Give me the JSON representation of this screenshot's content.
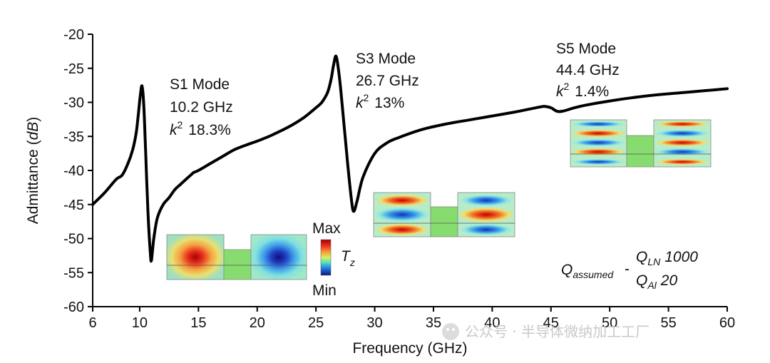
{
  "chart_data": {
    "type": "line",
    "xlabel": "Frequency (GHz)",
    "ylabel_main": "Admittance (",
    "ylabel_unit": "dB",
    "ylabel_close": ")",
    "xlim": [
      6,
      60
    ],
    "ylim": [
      -60,
      -20
    ],
    "xticks": [
      6,
      10,
      15,
      20,
      25,
      30,
      35,
      40,
      45,
      50,
      55,
      60
    ],
    "yticks": [
      -20,
      -25,
      -30,
      -35,
      -40,
      -45,
      -50,
      -55,
      -60
    ],
    "series": [
      {
        "x": [
          6,
          7,
          8,
          8.5,
          9,
          9.4,
          9.7,
          9.9,
          10.05,
          10.2,
          10.35,
          10.5,
          10.7,
          10.9,
          11.0,
          11.2,
          11.5,
          12,
          12.5,
          13,
          13.5,
          14,
          14.4,
          14.6,
          15,
          16,
          17,
          18,
          19,
          20,
          21,
          22,
          23,
          24,
          25,
          25.5,
          26,
          26.3,
          26.5,
          26.7,
          26.9,
          27.1,
          27.4,
          27.7,
          28.0,
          28.2,
          28.5,
          29,
          30,
          31,
          32,
          34,
          36,
          38,
          40,
          42,
          44,
          44.5,
          45,
          45.5,
          46,
          47,
          48,
          50,
          52,
          54,
          56,
          58,
          60
        ],
        "y": [
          -45,
          -43.3,
          -41.3,
          -40.7,
          -39.0,
          -37.0,
          -34.5,
          -31.5,
          -29.0,
          -27.6,
          -30.5,
          -37.0,
          -46.0,
          -52.0,
          -53.2,
          -50.0,
          -47.0,
          -45.0,
          -44.0,
          -42.8,
          -42.0,
          -41.2,
          -40.6,
          -40.3,
          -40.0,
          -39.0,
          -38.0,
          -37.0,
          -36.3,
          -35.7,
          -35.0,
          -34.2,
          -33.3,
          -32.2,
          -30.8,
          -30.0,
          -28.5,
          -26.5,
          -24.5,
          -23.2,
          -25.0,
          -28.0,
          -33.5,
          -39.0,
          -44.0,
          -46.0,
          -44.5,
          -41.0,
          -37.5,
          -36.0,
          -35.2,
          -34.0,
          -33.2,
          -32.6,
          -32.0,
          -31.4,
          -30.7,
          -30.6,
          -30.8,
          -31.3,
          -31.3,
          -30.8,
          -30.4,
          -29.8,
          -29.3,
          -28.9,
          -28.6,
          -28.3,
          -28.0
        ]
      }
    ]
  },
  "annotations": {
    "s1": {
      "title": "S1 Mode",
      "freq": "10.2 GHz",
      "k": "k",
      "k_exp": "2",
      "k_val": "18.3%"
    },
    "s3": {
      "title": "S3 Mode",
      "freq": "26.7 GHz",
      "k": "k",
      "k_exp": "2",
      "k_val": "13%"
    },
    "s5": {
      "title": "S5 Mode",
      "freq": "44.4 GHz",
      "k": "k",
      "k_exp": "2",
      "k_val": "1.4%"
    }
  },
  "colorbar": {
    "max": "Max",
    "min": "Min",
    "symbol": "T",
    "subscript": "z"
  },
  "q_note": {
    "q": "Q",
    "q_sub": "assumed",
    "dash": "-",
    "ln": "Q",
    "ln_sub": "LN",
    "ln_val": "1000",
    "al": "Q",
    "al_sub": "Al",
    "al_val": "20"
  },
  "watermark": "公众号 · 半导体微纳加工工厂",
  "colors": {
    "line": "#000000",
    "red": "#d42020",
    "blue": "#2440c8",
    "green": "#86dc6e"
  }
}
